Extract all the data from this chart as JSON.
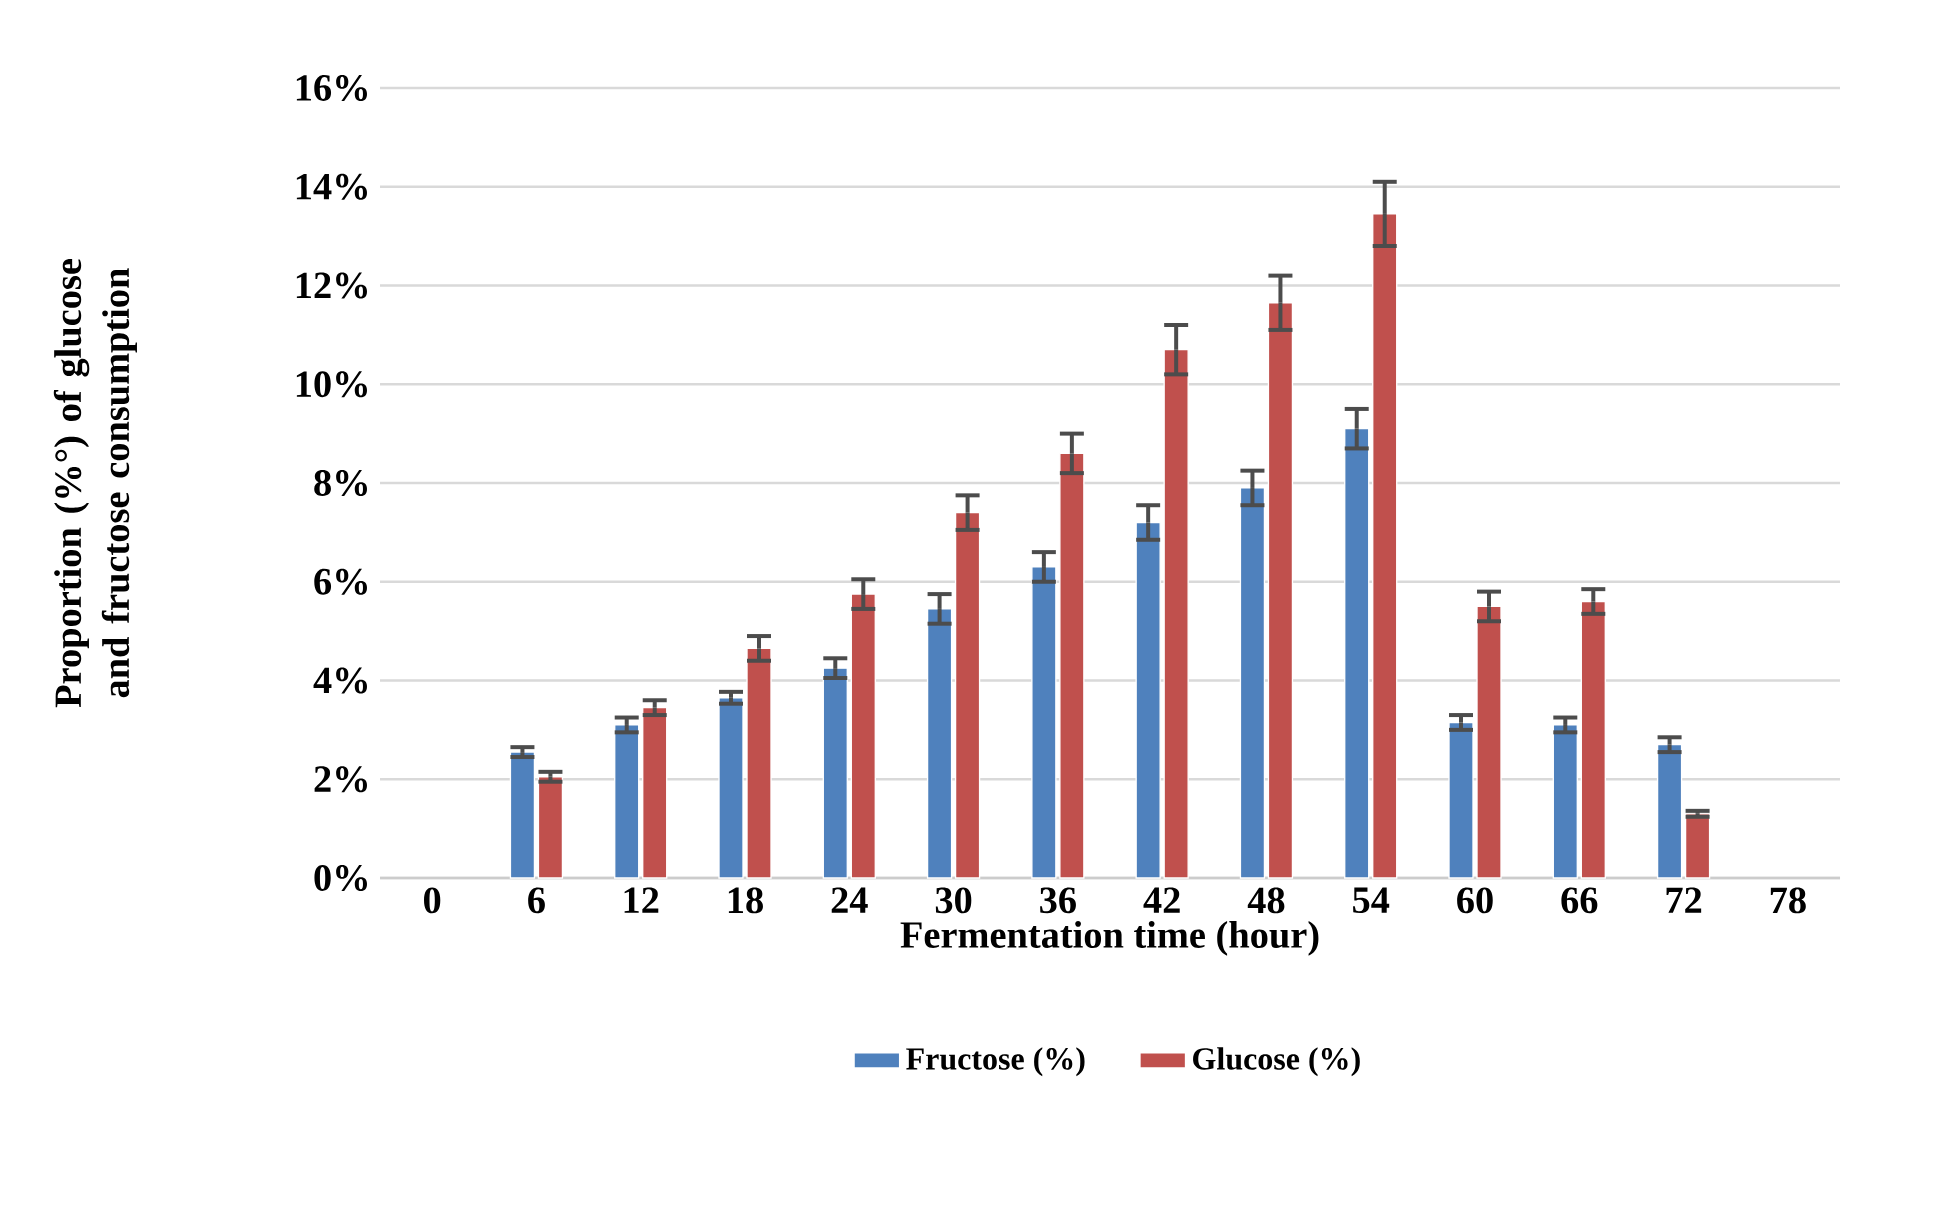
{
  "chart_data": {
    "type": "bar",
    "xlabel": "Fermentation time (hour)",
    "ylabel": "Proportion (%°) of glucose and fructose consumption",
    "categories": [
      "0",
      "6",
      "12",
      "18",
      "24",
      "30",
      "36",
      "42",
      "48",
      "54",
      "60",
      "66",
      "72",
      "78"
    ],
    "series": [
      {
        "name": "Fructose (%)",
        "color": "#4f81bd",
        "values": [
          null,
          2.55,
          3.1,
          3.65,
          4.25,
          5.45,
          6.3,
          7.2,
          7.9,
          9.1,
          3.15,
          3.1,
          2.7,
          null
        ],
        "errors": [
          null,
          0.1,
          0.15,
          0.12,
          0.2,
          0.3,
          0.3,
          0.35,
          0.35,
          0.4,
          0.15,
          0.15,
          0.15,
          null
        ]
      },
      {
        "name": "Glucose (%)",
        "color": "#c0504d",
        "values": [
          null,
          2.05,
          3.45,
          4.65,
          5.75,
          7.4,
          8.6,
          10.7,
          11.65,
          13.45,
          5.5,
          5.6,
          1.3,
          null
        ],
        "errors": [
          null,
          0.1,
          0.15,
          0.25,
          0.3,
          0.35,
          0.4,
          0.5,
          0.55,
          0.65,
          0.3,
          0.25,
          0.06,
          null
        ]
      }
    ],
    "ylim": [
      0,
      16
    ],
    "yticks": [
      {
        "value": 0,
        "label": "0%"
      },
      {
        "value": 2,
        "label": "2%"
      },
      {
        "value": 4,
        "label": "4%"
      },
      {
        "value": 6,
        "label": "6%"
      },
      {
        "value": 8,
        "label": "8%"
      },
      {
        "value": 10,
        "label": "10%"
      },
      {
        "value": 12,
        "label": "12%"
      },
      {
        "value": 14,
        "label": "14%"
      },
      {
        "value": 16,
        "label": "16%"
      }
    ],
    "grid": "y",
    "legend": "bottom"
  }
}
